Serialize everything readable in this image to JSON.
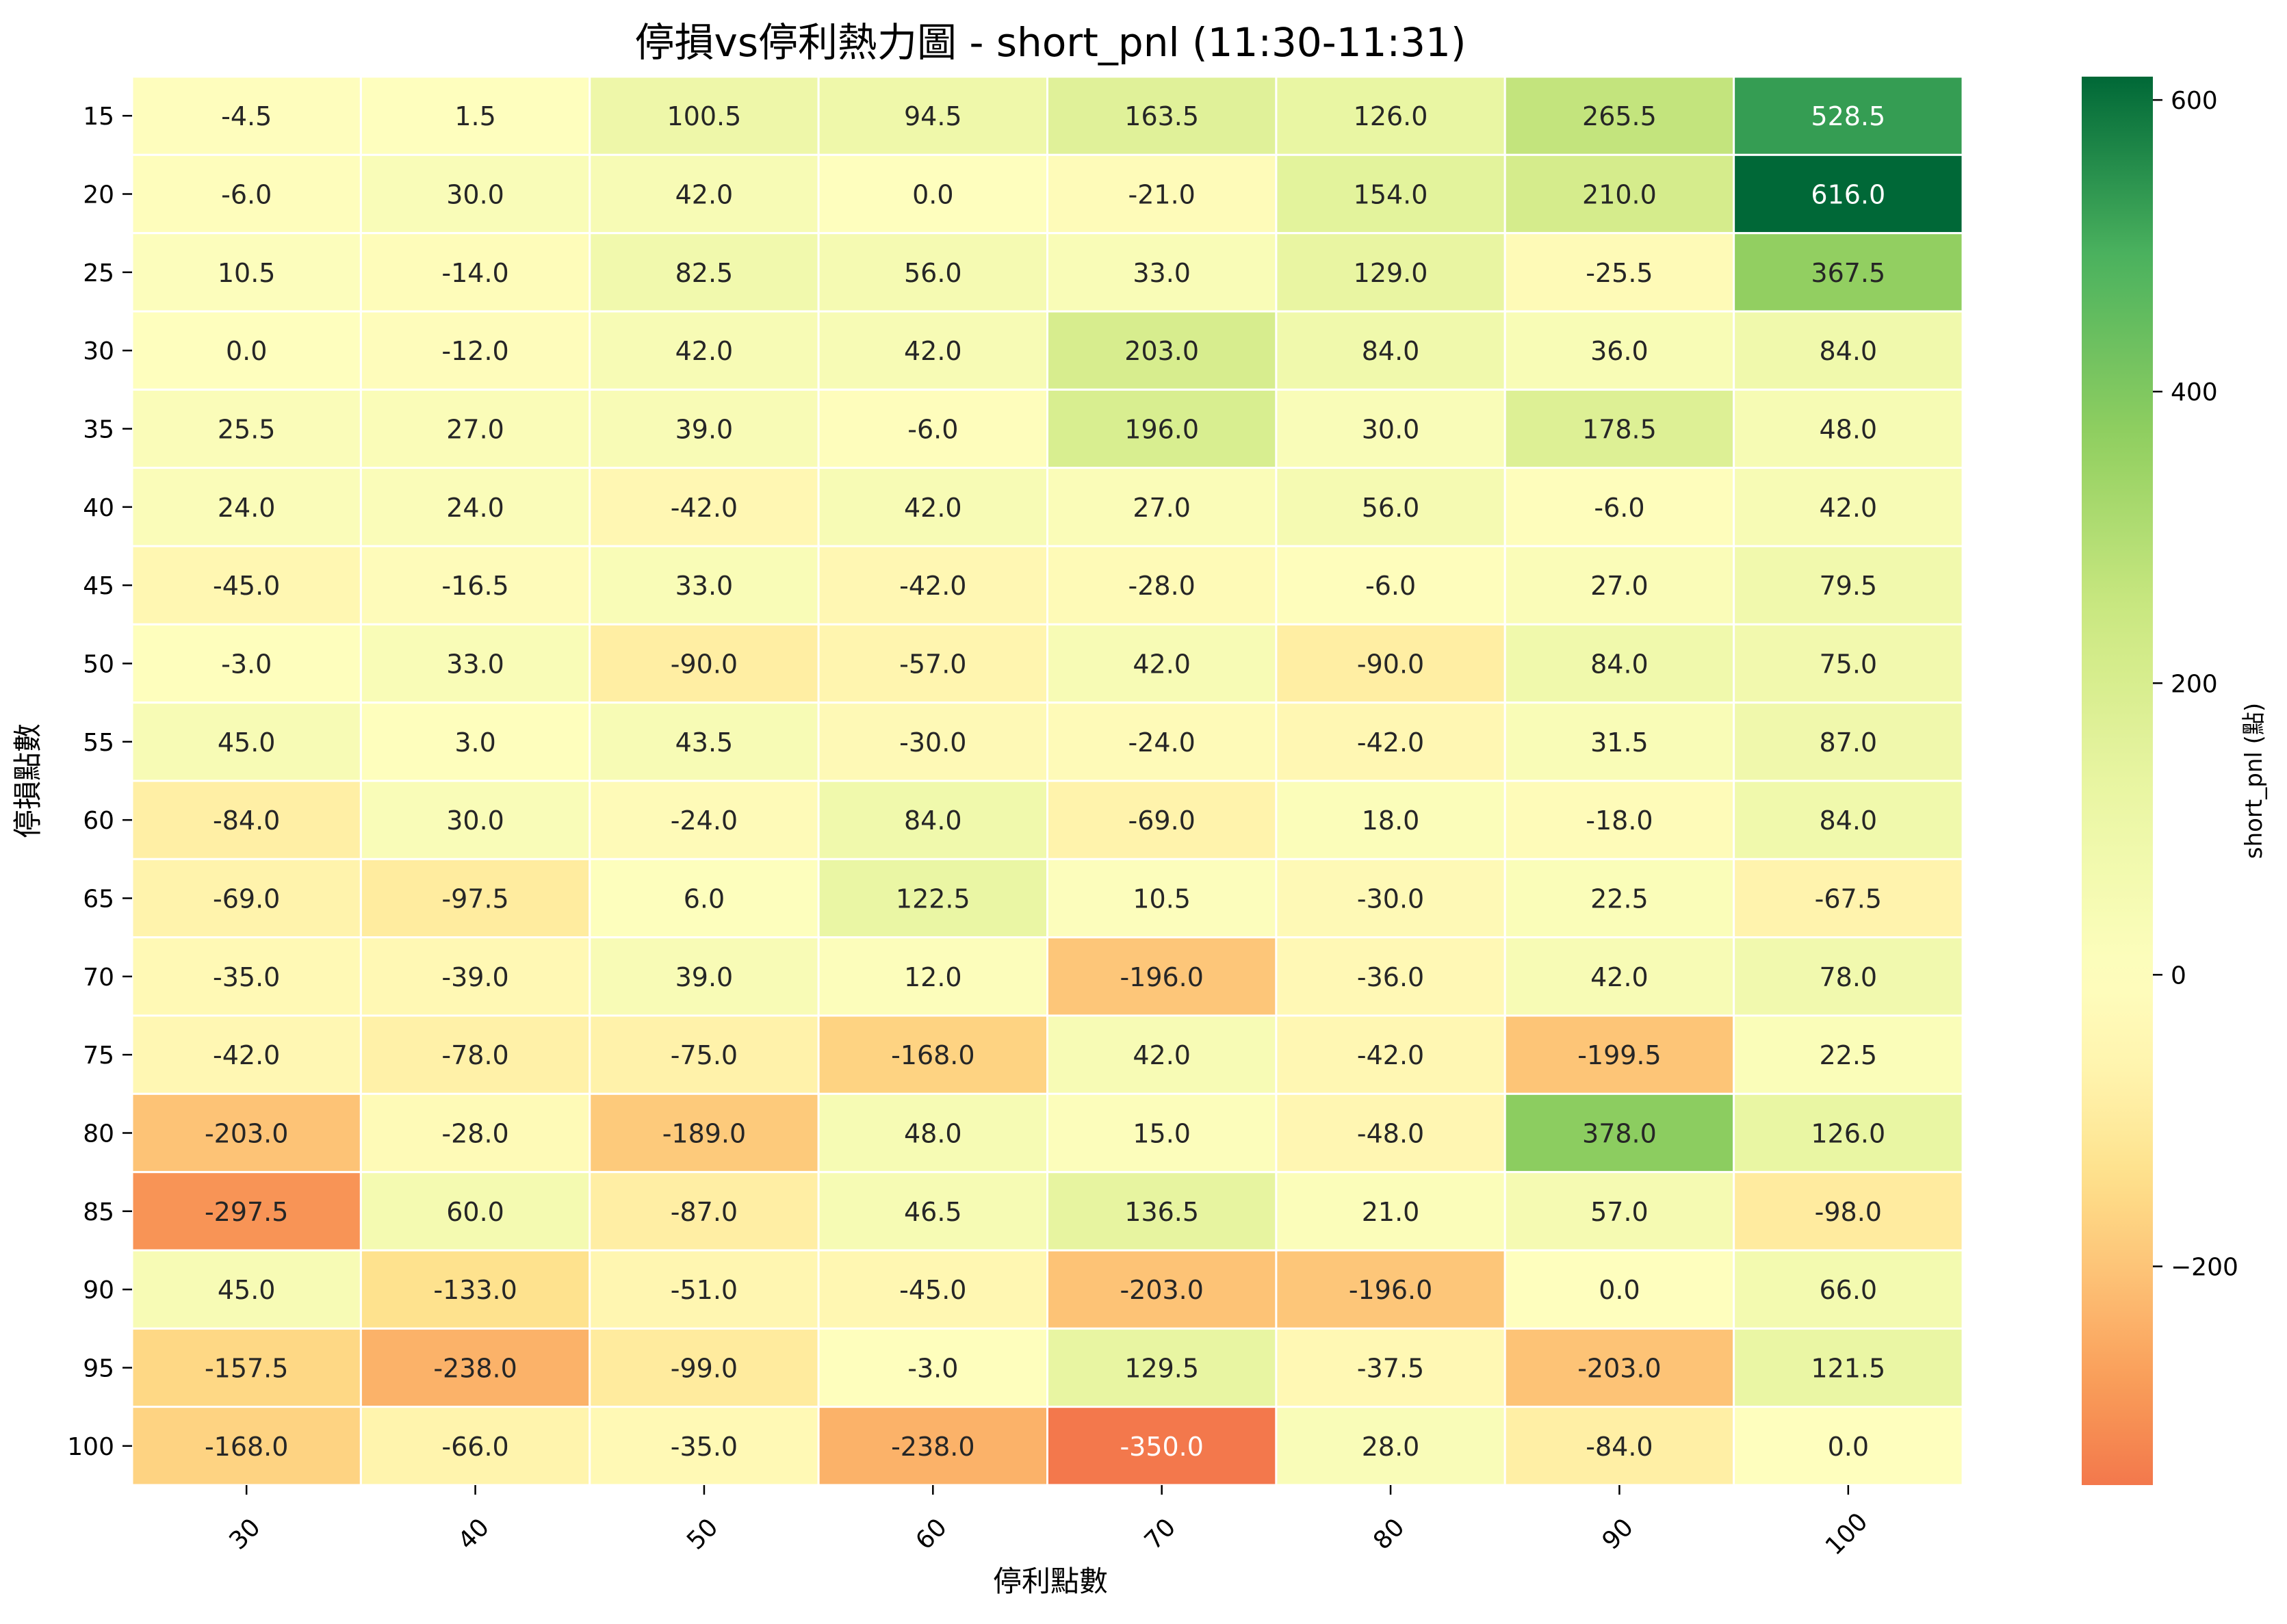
{
  "chart_data": {
    "type": "heatmap",
    "title": "停損vs停利熱力圖 - short_pnl (11:30-11:31)",
    "xlabel": "停利點數",
    "ylabel": "停損點數",
    "x_categories": [
      "30",
      "40",
      "50",
      "60",
      "70",
      "80",
      "90",
      "100"
    ],
    "y_categories": [
      "15",
      "20",
      "25",
      "30",
      "35",
      "40",
      "45",
      "50",
      "55",
      "60",
      "65",
      "70",
      "75",
      "80",
      "85",
      "90",
      "95",
      "100"
    ],
    "values": [
      [
        -4.5,
        1.5,
        100.5,
        94.5,
        163.5,
        126.0,
        265.5,
        528.5
      ],
      [
        -6.0,
        30.0,
        42.0,
        0.0,
        -21.0,
        154.0,
        210.0,
        616.0
      ],
      [
        10.5,
        -14.0,
        82.5,
        56.0,
        33.0,
        129.0,
        -25.5,
        367.5
      ],
      [
        0.0,
        -12.0,
        42.0,
        42.0,
        203.0,
        84.0,
        36.0,
        84.0
      ],
      [
        25.5,
        27.0,
        39.0,
        -6.0,
        196.0,
        30.0,
        178.5,
        48.0
      ],
      [
        24.0,
        24.0,
        -42.0,
        42.0,
        27.0,
        56.0,
        -6.0,
        42.0
      ],
      [
        -45.0,
        -16.5,
        33.0,
        -42.0,
        -28.0,
        -6.0,
        27.0,
        79.5
      ],
      [
        -3.0,
        33.0,
        -90.0,
        -57.0,
        42.0,
        -90.0,
        84.0,
        75.0
      ],
      [
        45.0,
        3.0,
        43.5,
        -30.0,
        -24.0,
        -42.0,
        31.5,
        87.0
      ],
      [
        -84.0,
        30.0,
        -24.0,
        84.0,
        -69.0,
        18.0,
        -18.0,
        84.0
      ],
      [
        -69.0,
        -97.5,
        6.0,
        122.5,
        10.5,
        -30.0,
        22.5,
        -67.5
      ],
      [
        -35.0,
        -39.0,
        39.0,
        12.0,
        -196.0,
        -36.0,
        42.0,
        78.0
      ],
      [
        -42.0,
        -78.0,
        -75.0,
        -168.0,
        42.0,
        -42.0,
        -199.5,
        22.5
      ],
      [
        -203.0,
        -28.0,
        -189.0,
        48.0,
        15.0,
        -48.0,
        378.0,
        126.0
      ],
      [
        -297.5,
        60.0,
        -87.0,
        46.5,
        136.5,
        21.0,
        57.0,
        -98.0
      ],
      [
        45.0,
        -133.0,
        -51.0,
        -45.0,
        -203.0,
        -196.0,
        0.0,
        66.0
      ],
      [
        -157.5,
        -238.0,
        -99.0,
        -3.0,
        129.5,
        -37.5,
        -203.0,
        121.5
      ],
      [
        -168.0,
        -66.0,
        -35.0,
        -238.0,
        -350.0,
        28.0,
        -84.0,
        0.0
      ]
    ],
    "colorbar": {
      "label": "short_pnl (點)",
      "min": -350,
      "max": 616,
      "ticks": [
        -200,
        0,
        200,
        400,
        600
      ],
      "colormap": "RdYlGn",
      "center": 0
    },
    "grid": false,
    "legend": "colorbar-right"
  }
}
